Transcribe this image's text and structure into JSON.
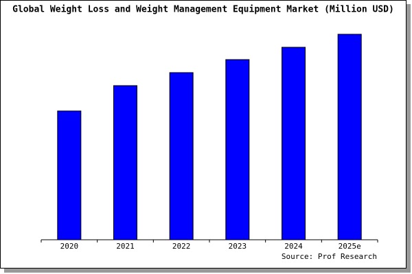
{
  "chart_data": {
    "type": "bar",
    "title": "Global Weight Loss and Weight Management Equipment Market (Million USD)",
    "source": "Source: Prof Research",
    "categories": [
      "2020",
      "2021",
      "2022",
      "2023",
      "2024",
      "2025e"
    ],
    "values": [
      188,
      225,
      244,
      263,
      281,
      300
    ],
    "color": "#0000ff",
    "ylim": [
      0,
      302
    ]
  }
}
